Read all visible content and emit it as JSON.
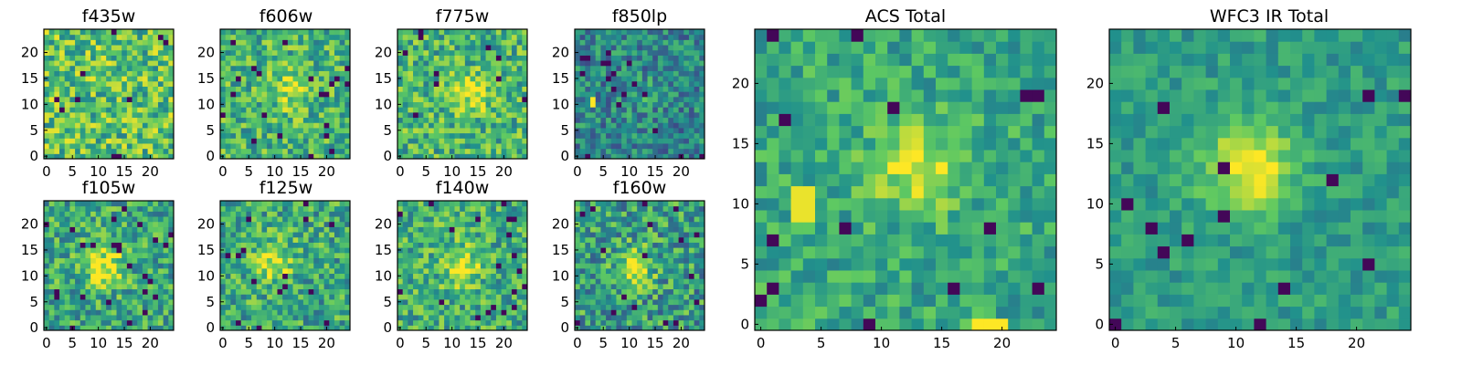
{
  "figure": {
    "colormap": "viridis",
    "colormap_stops": [
      "#440154",
      "#3b528b",
      "#21918c",
      "#5ec962",
      "#fde725"
    ]
  },
  "chart_data": [
    {
      "type": "heatmap",
      "title": "f435w",
      "grid": [
        25,
        25
      ],
      "xlim": [
        0,
        24
      ],
      "ylim": [
        0,
        24
      ],
      "xticks": [
        "0",
        "5",
        "10",
        "15",
        "20"
      ],
      "yticks": [
        "0",
        "5",
        "10",
        "15",
        "20"
      ],
      "appearance": "noise",
      "background_level": 0.7
    },
    {
      "type": "heatmap",
      "title": "f606w",
      "grid": [
        25,
        25
      ],
      "xlim": [
        0,
        24
      ],
      "ylim": [
        0,
        24
      ],
      "xticks": [
        "0",
        "5",
        "10",
        "15",
        "20"
      ],
      "yticks": [
        "0",
        "5",
        "10",
        "15",
        "20"
      ],
      "appearance": "faint central source",
      "source_center": [
        13,
        13
      ],
      "background_level": 0.65
    },
    {
      "type": "heatmap",
      "title": "f775w",
      "grid": [
        25,
        25
      ],
      "xlim": [
        0,
        24
      ],
      "ylim": [
        0,
        24
      ],
      "xticks": [
        "0",
        "5",
        "10",
        "15",
        "20"
      ],
      "yticks": [
        "0",
        "5",
        "10",
        "15",
        "20"
      ],
      "appearance": "faint central source",
      "source_center": [
        14,
        12
      ],
      "background_level": 0.65
    },
    {
      "type": "heatmap",
      "title": "f850lp",
      "grid": [
        25,
        25
      ],
      "xlim": [
        0,
        24
      ],
      "ylim": [
        0,
        24
      ],
      "xticks": [
        "0",
        "5",
        "10",
        "15",
        "20"
      ],
      "yticks": [
        "0",
        "5",
        "10",
        "15",
        "20"
      ],
      "appearance": "low background, bright pixel near (3, 10)",
      "background_level": 0.45
    },
    {
      "type": "heatmap",
      "title": "f105w",
      "grid": [
        25,
        25
      ],
      "xlim": [
        0,
        24
      ],
      "ylim": [
        0,
        24
      ],
      "xticks": [
        "0",
        "5",
        "10",
        "15",
        "20"
      ],
      "yticks": [
        "0",
        "5",
        "10",
        "15",
        "20"
      ],
      "appearance": "central source",
      "source_center": [
        11,
        12
      ],
      "background_level": 0.6
    },
    {
      "type": "heatmap",
      "title": "f125w",
      "grid": [
        25,
        25
      ],
      "xlim": [
        0,
        24
      ],
      "ylim": [
        0,
        24
      ],
      "xticks": [
        "0",
        "5",
        "10",
        "15",
        "20"
      ],
      "yticks": [
        "0",
        "5",
        "10",
        "15",
        "20"
      ],
      "appearance": "central source",
      "source_center": [
        10,
        13
      ],
      "background_level": 0.6
    },
    {
      "type": "heatmap",
      "title": "f140w",
      "grid": [
        25,
        25
      ],
      "xlim": [
        0,
        24
      ],
      "ylim": [
        0,
        24
      ],
      "xticks": [
        "0",
        "5",
        "10",
        "15",
        "20"
      ],
      "yticks": [
        "0",
        "5",
        "10",
        "15",
        "20"
      ],
      "appearance": "central source",
      "source_center": [
        12,
        12
      ],
      "background_level": 0.62
    },
    {
      "type": "heatmap",
      "title": "f160w",
      "grid": [
        25,
        25
      ],
      "xlim": [
        0,
        24
      ],
      "ylim": [
        0,
        24
      ],
      "xticks": [
        "0",
        "5",
        "10",
        "15",
        "20"
      ],
      "yticks": [
        "0",
        "5",
        "10",
        "15",
        "20"
      ],
      "appearance": "central source",
      "source_center": [
        11,
        12
      ],
      "background_level": 0.55
    },
    {
      "type": "heatmap",
      "title": "ACS Total",
      "grid": [
        25,
        25
      ],
      "xlim": [
        0,
        24
      ],
      "ylim": [
        0,
        24
      ],
      "xticks": [
        "0",
        "5",
        "10",
        "15",
        "20"
      ],
      "yticks": [
        "0",
        "5",
        "10",
        "15",
        "20"
      ],
      "appearance": "central source with bright patches near (3, 10) and (19, 0)",
      "source_center": [
        13,
        13
      ],
      "background_level": 0.6
    },
    {
      "type": "heatmap",
      "title": "WFC3 IR Total",
      "grid": [
        25,
        25
      ],
      "xlim": [
        0,
        24
      ],
      "ylim": [
        0,
        24
      ],
      "xticks": [
        "0",
        "5",
        "10",
        "15",
        "20"
      ],
      "yticks": [
        "0",
        "5",
        "10",
        "15",
        "20"
      ],
      "appearance": "strong central source",
      "source_center": [
        11,
        13
      ],
      "background_level": 0.55
    }
  ]
}
